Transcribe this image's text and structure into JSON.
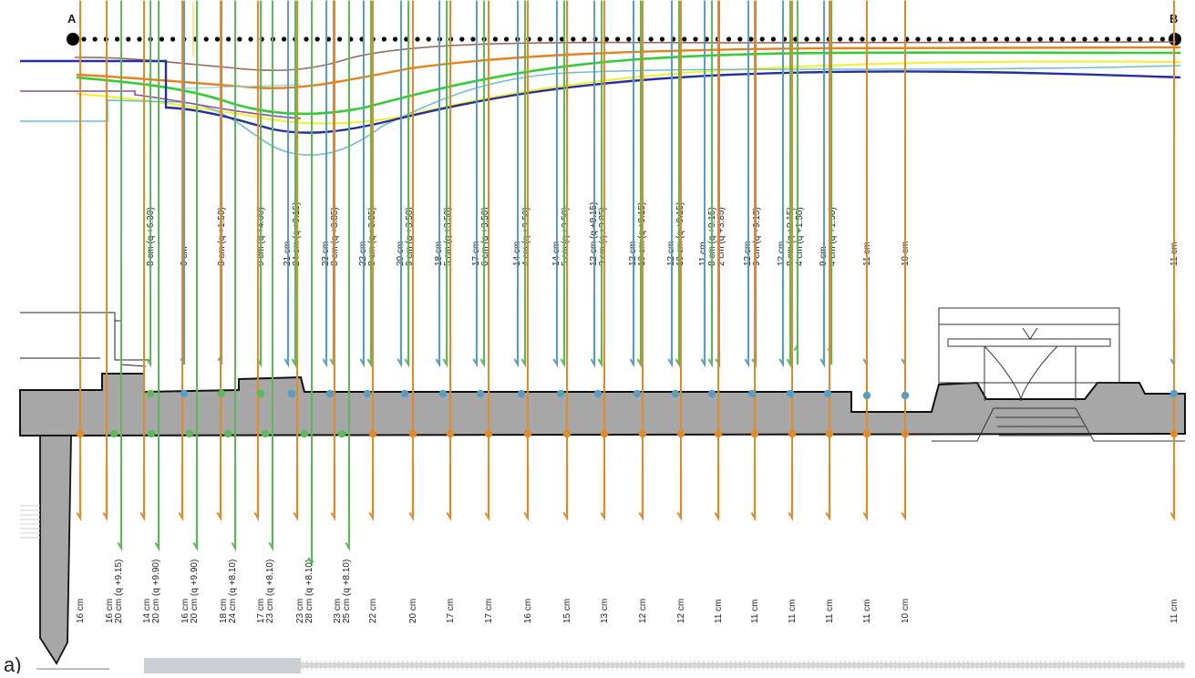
{
  "endpoints": {
    "start": "A",
    "end": "B"
  },
  "panel_label": "a)",
  "colors": {
    "blue": "#5b9dc0",
    "green": "#5db85a",
    "orange": "#e08a2a",
    "wall": "#a7a7a7",
    "section_blue": "#2430a0",
    "section_green": "#33cc33",
    "section_orange": "#e5821f",
    "section_yellow": "#f2f03a",
    "section_purple": "#8b4c9c",
    "section_cyan": "#71bcd0",
    "section_brown": "#9a6a60"
  },
  "top_columns": [
    {
      "lines": [
        "8 cm (q +6.30)"
      ],
      "arrows": [
        {
          "color": "green",
          "dir": "down",
          "len": 0.84
        }
      ]
    },
    {
      "lines": [
        "0 cm"
      ],
      "arrows": [
        {
          "color": "blue",
          "dir": "up",
          "len": 0.12
        }
      ]
    },
    {
      "lines": [
        "3 cm (q +1.50)"
      ],
      "arrows": [
        {
          "color": "green",
          "dir": "up",
          "len": 0.12
        }
      ]
    },
    {
      "lines": [
        "9 cm (q +4.00)"
      ],
      "arrows": [
        {
          "color": "green",
          "dir": "down",
          "len": 0.93
        }
      ]
    },
    {
      "lines": [
        "21 cm",
        "24 cm (q +9.15)"
      ],
      "arrows": [
        {
          "color": "blue",
          "dir": "down",
          "len": 0.9
        },
        {
          "color": "green",
          "dir": "down",
          "len": 0.9
        }
      ]
    },
    {
      "lines": [
        "23 cm",
        "8 cm (q +3.85)"
      ],
      "arrows": [
        {
          "color": "blue",
          "dir": "down",
          "len": 0.93
        },
        {
          "color": "green",
          "dir": "down",
          "len": 0.78
        }
      ]
    },
    {
      "lines": [
        "22 cm",
        "8 cm (q +3.85)"
      ],
      "arrows": [
        {
          "color": "blue",
          "dir": "down",
          "len": 0.93
        },
        {
          "color": "green",
          "dir": "down",
          "len": 0.18
        }
      ]
    },
    {
      "lines": [
        "20 cm",
        "9 cm (q +3.50)"
      ],
      "arrows": [
        {
          "color": "blue",
          "dir": "down",
          "len": 0.85
        },
        {
          "color": "green",
          "dir": "down",
          "len": 0.18
        }
      ]
    },
    {
      "lines": [
        "18 cm",
        "5 cm (q +3.50)"
      ],
      "arrows": [
        {
          "color": "blue",
          "dir": "down",
          "len": 0.85
        },
        {
          "color": "green",
          "dir": "down",
          "len": 0.18
        }
      ]
    },
    {
      "lines": [
        "17 cm",
        "6 cm (q +3.50)"
      ],
      "arrows": [
        {
          "color": "blue",
          "dir": "down",
          "len": 0.85
        },
        {
          "color": "green",
          "dir": "down",
          "len": 0.18
        }
      ]
    },
    {
      "lines": [
        "14 cm",
        "4 cm (q +3.50)"
      ],
      "arrows": [
        {
          "color": "blue",
          "dir": "down",
          "len": 0.85
        },
        {
          "color": "green",
          "dir": "down",
          "len": 0.18
        }
      ]
    },
    {
      "lines": [
        "14 cm",
        "5 cm (q +3.50)"
      ],
      "arrows": [
        {
          "color": "blue",
          "dir": "down",
          "len": 0.85
        },
        {
          "color": "green",
          "dir": "down",
          "len": 0.18
        }
      ]
    },
    {
      "lines": [
        "12 cm (q +9.15)",
        "3 cm (q +3.85)"
      ],
      "arrows": [
        {
          "color": "blue",
          "dir": "down",
          "len": 0.78
        },
        {
          "color": "green",
          "dir": "down",
          "len": 0.18
        }
      ]
    },
    {
      "lines": [
        "12 cm",
        "10 cm (q +9.15)"
      ],
      "arrows": [
        {
          "color": "blue",
          "dir": "down",
          "len": 0.96
        },
        {
          "color": "green",
          "dir": "down",
          "len": 0.8
        }
      ]
    },
    {
      "lines": [
        "12 cm",
        "10 cm (q +9.15)"
      ],
      "arrows": [
        {
          "color": "blue",
          "dir": "down",
          "len": 0.96
        },
        {
          "color": "green",
          "dir": "down",
          "len": 0.8
        }
      ]
    },
    {
      "lines": [
        "11 cm",
        "8 cm (q +9.15)",
        "2 cm (q +3.85)"
      ],
      "arrows": [
        {
          "color": "blue",
          "dir": "down",
          "len": 0.96
        },
        {
          "color": "green",
          "dir": "down",
          "len": 0.78
        },
        {
          "color": "green",
          "dir": "down",
          "len": 0.14
        }
      ]
    },
    {
      "lines": [
        "12 cm",
        "9 cm (q +9.15)"
      ],
      "arrows": [
        {
          "color": "blue",
          "dir": "down",
          "len": 0.87
        },
        {
          "color": "green",
          "dir": "down",
          "len": 0.82
        }
      ]
    },
    {
      "lines": [
        "12 cm",
        "8 cm (q +9.15)",
        "4 cm (q +1.50)"
      ],
      "arrows": [
        {
          "color": "blue",
          "dir": "down",
          "len": 0.98
        },
        {
          "color": "green",
          "dir": "down",
          "len": 0.78
        },
        {
          "color": "green",
          "dir": "up",
          "len": 0.25
        }
      ]
    },
    {
      "lines": [
        "9 cm",
        "4 cm (q +1.50)"
      ],
      "arrows": [
        {
          "color": "blue",
          "dir": "down",
          "len": 0.87
        },
        {
          "color": "green",
          "dir": "up",
          "len": 0.25
        }
      ]
    },
    {
      "lines": [
        "11 cm"
      ],
      "arrows": [
        {
          "color": "blue",
          "dir": "down",
          "len": 0.55
        }
      ]
    },
    {
      "lines": [
        "10 cm"
      ],
      "arrows": [
        {
          "color": "blue",
          "dir": "down",
          "len": 0.55
        }
      ]
    },
    {
      "lines": [
        "11 cm"
      ],
      "arrows": [
        {
          "color": "blue",
          "dir": "down",
          "len": 0.55
        }
      ]
    }
  ],
  "bottom_columns": [
    {
      "lines": [
        "16 cm"
      ],
      "arrows": [
        {
          "color": "orange",
          "dir": "down",
          "len": 0.55
        }
      ]
    },
    {
      "lines": [
        "16 cm",
        "20 cm (q +9.15)"
      ],
      "arrows": [
        {
          "color": "orange",
          "dir": "down",
          "len": 0.55
        },
        {
          "color": "green",
          "dir": "down",
          "len": 0.85
        }
      ]
    },
    {
      "lines": [
        "14 cm",
        "20 cm (q +9.90)"
      ],
      "arrows": [
        {
          "color": "orange",
          "dir": "down",
          "len": 0.55
        },
        {
          "color": "green",
          "dir": "down",
          "len": 0.85
        }
      ]
    },
    {
      "lines": [
        "16 cm",
        "20 cm (q +9.90)"
      ],
      "arrows": [
        {
          "color": "orange",
          "dir": "down",
          "len": 0.55
        },
        {
          "color": "green",
          "dir": "down",
          "len": 0.85
        }
      ]
    },
    {
      "lines": [
        "18 cm",
        "24 cm (q +8.10)"
      ],
      "arrows": [
        {
          "color": "orange",
          "dir": "down",
          "len": 0.55
        },
        {
          "color": "green",
          "dir": "down",
          "len": 0.85
        }
      ]
    },
    {
      "lines": [
        "17 cm",
        "23 cm (q +8.10)"
      ],
      "arrows": [
        {
          "color": "orange",
          "dir": "down",
          "len": 0.55
        },
        {
          "color": "green",
          "dir": "down",
          "len": 0.85
        }
      ]
    },
    {
      "lines": [
        "23 cm",
        "28 cm (q +8.10)"
      ],
      "arrows": [
        {
          "color": "orange",
          "dir": "down",
          "len": 0.55
        },
        {
          "color": "green",
          "dir": "down",
          "len": 1.0
        }
      ]
    },
    {
      "lines": [
        "23 cm",
        "25 cm (q +8.10)"
      ],
      "arrows": [
        {
          "color": "orange",
          "dir": "down",
          "len": 0.55
        },
        {
          "color": "green",
          "dir": "down",
          "len": 0.85
        }
      ]
    },
    {
      "lines": [
        "22 cm"
      ],
      "arrows": [
        {
          "color": "orange",
          "dir": "down",
          "len": 0.55
        }
      ]
    },
    {
      "lines": [
        "20 cm"
      ],
      "arrows": [
        {
          "color": "orange",
          "dir": "down",
          "len": 0.55
        }
      ]
    },
    {
      "lines": [
        "17 cm"
      ],
      "arrows": [
        {
          "color": "orange",
          "dir": "down",
          "len": 0.55
        }
      ]
    },
    {
      "lines": [
        "17 cm"
      ],
      "arrows": [
        {
          "color": "orange",
          "dir": "down",
          "len": 0.55
        }
      ]
    },
    {
      "lines": [
        "16 cm"
      ],
      "arrows": [
        {
          "color": "orange",
          "dir": "down",
          "len": 0.55
        }
      ]
    },
    {
      "lines": [
        "15 cm"
      ],
      "arrows": [
        {
          "color": "orange",
          "dir": "down",
          "len": 0.55
        }
      ]
    },
    {
      "lines": [
        "13 cm"
      ],
      "arrows": [
        {
          "color": "orange",
          "dir": "down",
          "len": 0.55
        }
      ]
    },
    {
      "lines": [
        "12 cm"
      ],
      "arrows": [
        {
          "color": "orange",
          "dir": "down",
          "len": 0.55
        }
      ]
    },
    {
      "lines": [
        "12 cm"
      ],
      "arrows": [
        {
          "color": "orange",
          "dir": "down",
          "len": 0.55
        }
      ]
    },
    {
      "lines": [
        "11 cm"
      ],
      "arrows": [
        {
          "color": "orange",
          "dir": "down",
          "len": 0.55
        }
      ]
    },
    {
      "lines": [
        "11 cm"
      ],
      "arrows": [
        {
          "color": "orange",
          "dir": "down",
          "len": 0.55
        }
      ]
    },
    {
      "lines": [
        "11 cm"
      ],
      "arrows": [
        {
          "color": "orange",
          "dir": "down",
          "len": 0.55
        }
      ]
    },
    {
      "lines": [
        "11 cm"
      ],
      "arrows": [
        {
          "color": "orange",
          "dir": "down",
          "len": 0.55
        }
      ]
    },
    {
      "lines": [
        "11 cm"
      ],
      "arrows": [
        {
          "color": "orange",
          "dir": "down",
          "len": 0.55
        }
      ]
    },
    {
      "lines": [
        "10 cm"
      ],
      "arrows": [
        {
          "color": "orange",
          "dir": "down",
          "len": 0.55
        }
      ]
    },
    {
      "lines": [
        "11 cm"
      ],
      "arrows": [
        {
          "color": "orange",
          "dir": "down",
          "len": 0.55
        }
      ]
    }
  ]
}
